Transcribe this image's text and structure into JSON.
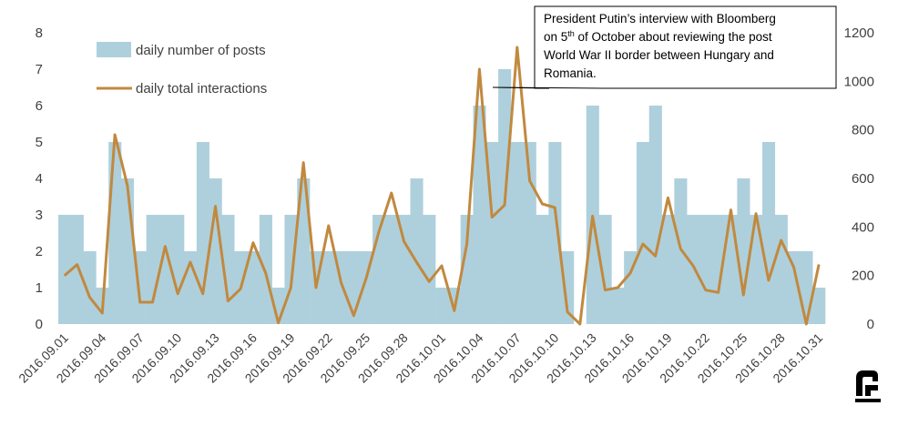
{
  "colors": {
    "bars": "#aed0dc",
    "line": "#c1893f",
    "axis_text": "#404040",
    "gridline": "#d9d9d9",
    "callout_border": "#000000",
    "logo": "#000000"
  },
  "legend": {
    "bars_label": "daily number of posts",
    "line_label": "daily total interactions",
    "placement": "top-left"
  },
  "callout": {
    "line1": "President Putin’s interview with Bloomberg",
    "line2_prefix": "on 5",
    "line2_sup": "th",
    "line2_suffix": " of October about reviewing the post",
    "line3": "World War II border between Hungary and",
    "line4": "Romania."
  },
  "logo": {
    "icon": "publisher-logo-icon"
  },
  "chart_data": {
    "type": "bar",
    "title": "",
    "xlabel": "",
    "ylabel": "",
    "y2label": "",
    "grid": false,
    "ylim": [
      0,
      8
    ],
    "y2lim": [
      0,
      1200
    ],
    "y_ticks": [
      0,
      1,
      2,
      3,
      4,
      5,
      6,
      7,
      8
    ],
    "y2_ticks": [
      0,
      200,
      400,
      600,
      800,
      1000,
      1200
    ],
    "x_tick_labels": [
      "2016.09.01",
      "2016.09.04",
      "2016.09.07",
      "2016.09.10",
      "2016.09.13",
      "2016.09.16",
      "2016.09.19",
      "2016.09.22",
      "2016.09.25",
      "2016.09.28",
      "2016.10.01",
      "2016.10.04",
      "2016.10.07",
      "2016.10.10",
      "2016.10.13",
      "2016.10.16",
      "2016.10.19",
      "2016.10.22",
      "2016.10.25",
      "2016.10.28",
      "2016.10.31"
    ],
    "x": [
      "2016.09.01",
      "2016.09.02",
      "2016.09.03",
      "2016.09.04",
      "2016.09.05",
      "2016.09.06",
      "2016.09.07",
      "2016.09.08",
      "2016.09.09",
      "2016.09.10",
      "2016.09.11",
      "2016.09.12",
      "2016.09.13",
      "2016.09.14",
      "2016.09.15",
      "2016.09.16",
      "2016.09.17",
      "2016.09.18",
      "2016.09.19",
      "2016.09.20",
      "2016.09.21",
      "2016.09.22",
      "2016.09.23",
      "2016.09.24",
      "2016.09.25",
      "2016.09.26",
      "2016.09.27",
      "2016.09.28",
      "2016.09.29",
      "2016.09.30",
      "2016.10.01",
      "2016.10.02",
      "2016.10.03",
      "2016.10.04",
      "2016.10.05",
      "2016.10.06",
      "2016.10.07",
      "2016.10.08",
      "2016.10.09",
      "2016.10.10",
      "2016.10.11",
      "2016.10.12",
      "2016.10.13",
      "2016.10.14",
      "2016.10.15",
      "2016.10.16",
      "2016.10.17",
      "2016.10.18",
      "2016.10.19",
      "2016.10.20",
      "2016.10.21",
      "2016.10.22",
      "2016.10.23",
      "2016.10.24",
      "2016.10.25",
      "2016.10.26",
      "2016.10.27",
      "2016.10.28",
      "2016.10.29",
      "2016.10.30",
      "2016.10.31"
    ],
    "series": [
      {
        "name": "daily number of posts",
        "type": "bar",
        "axis": "left",
        "values": [
          3,
          3,
          2,
          1,
          5,
          4,
          2,
          3,
          3,
          3,
          2,
          5,
          4,
          3,
          2,
          2,
          3,
          1,
          3,
          4,
          2,
          2,
          2,
          2,
          2,
          3,
          3,
          3,
          4,
          3,
          1,
          1,
          3,
          6,
          5,
          7,
          5,
          5,
          3,
          5,
          2,
          0,
          6,
          3,
          1,
          2,
          5,
          6,
          3,
          4,
          3,
          3,
          3,
          3,
          4,
          3,
          5,
          3,
          2,
          2,
          1
        ]
      },
      {
        "name": "daily total interactions",
        "type": "line",
        "axis": "right",
        "values": [
          200,
          245,
          110,
          45,
          780,
          570,
          90,
          90,
          320,
          125,
          255,
          125,
          485,
          95,
          145,
          335,
          210,
          5,
          150,
          665,
          150,
          405,
          170,
          35,
          190,
          380,
          540,
          340,
          255,
          175,
          240,
          55,
          330,
          1050,
          440,
          490,
          1140,
          590,
          495,
          480,
          50,
          0,
          445,
          140,
          150,
          210,
          330,
          280,
          520,
          310,
          240,
          140,
          130,
          470,
          120,
          455,
          180,
          345,
          235,
          0,
          245
        ]
      }
    ]
  }
}
